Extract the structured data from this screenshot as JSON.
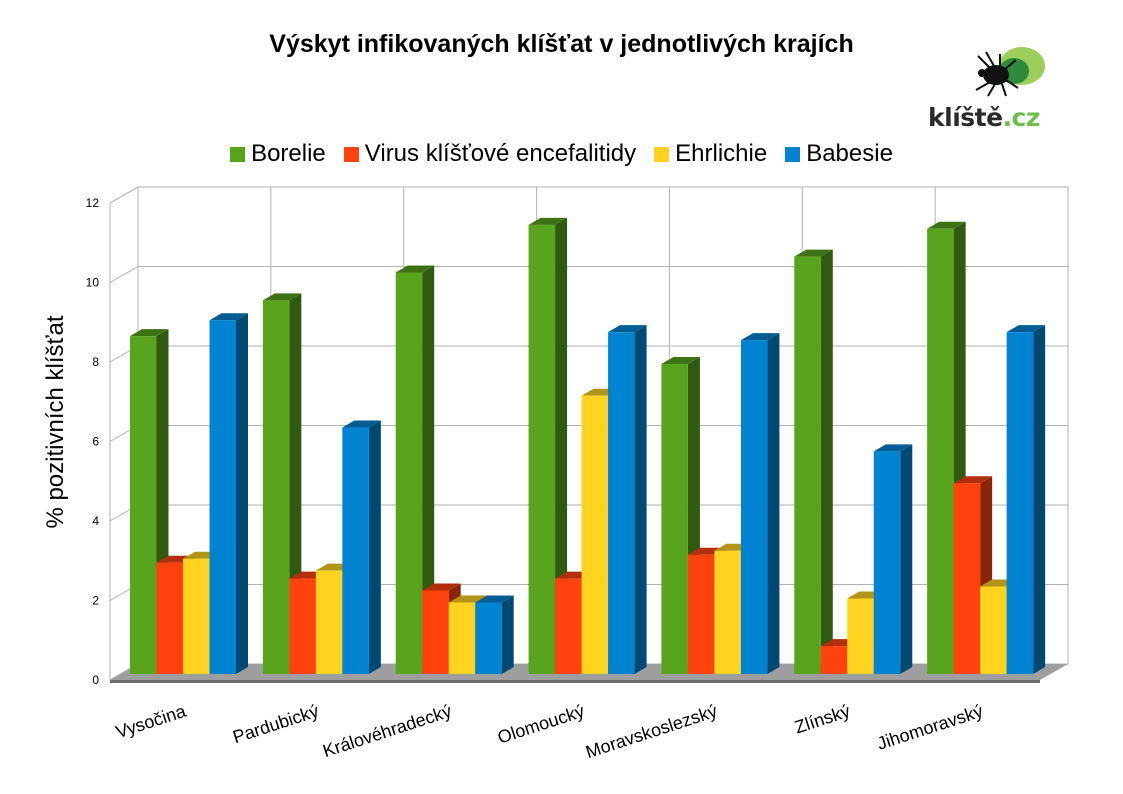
{
  "chart_data": {
    "type": "bar",
    "title": "Výskyt infikovaných klíšťat v jednotlivých krajích",
    "ylabel": "% pozitivních klíšťat",
    "xlabel": "",
    "ylim": [
      0,
      12
    ],
    "yticks": [
      0,
      2,
      4,
      6,
      8,
      10,
      12
    ],
    "grid": true,
    "legend_position": "top",
    "categories": [
      "Vysočina",
      "Pardubický",
      "Královéhradecký",
      "Olomoucký",
      "Moravskoslezský",
      "Zlínský",
      "Jihomoravský"
    ],
    "series": [
      {
        "name": "Borelie",
        "color": "#58a41c",
        "values": [
          8.5,
          9.4,
          10.1,
          11.3,
          7.8,
          10.5,
          11.2
        ]
      },
      {
        "name": "Virus klíšťové encefalitidy",
        "color": "#ff420e",
        "values": [
          2.8,
          2.4,
          2.1,
          2.4,
          3.0,
          0.7,
          4.8
        ]
      },
      {
        "name": "Ehrlichie",
        "color": "#ffd320",
        "values": [
          2.9,
          2.6,
          1.8,
          7.0,
          3.1,
          1.9,
          2.2
        ]
      },
      {
        "name": "Babesie",
        "color": "#0084d1",
        "values": [
          8.9,
          6.2,
          1.8,
          8.6,
          8.4,
          5.6,
          8.6
        ]
      }
    ]
  },
  "logo": {
    "text_main": "klíště",
    "text_suffix": ".cz",
    "icon": "tick-icon"
  }
}
